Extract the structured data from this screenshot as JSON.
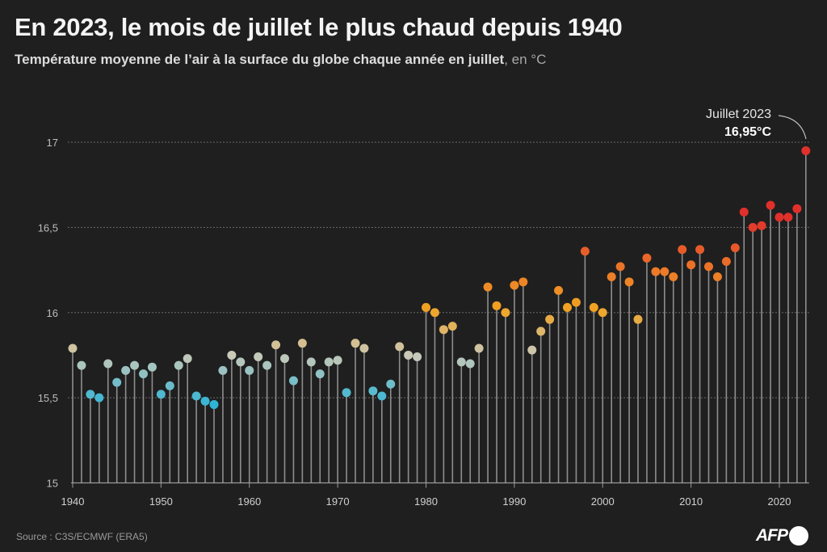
{
  "header": {
    "title": "En 2023, le mois de juillet le plus chaud depuis 1940",
    "subtitle": "Température moyenne de l’air à la surface du globe chaque année en juillet",
    "subtitle_unit": ", en °C"
  },
  "footer": {
    "source": "Source : C3S/ECMWF (ERA5)",
    "logo": "AFP"
  },
  "chart_data": {
    "type": "scatter",
    "subtype": "lollipop",
    "title": "En 2023, le mois de juillet le plus chaud depuis 1940",
    "xlabel": "",
    "ylabel": "°C",
    "xlim": [
      1940,
      2023
    ],
    "ylim": [
      15,
      17
    ],
    "yticks": [
      "15",
      "15,5",
      "16",
      "16,5",
      "17"
    ],
    "ytick_values": [
      15,
      15.5,
      16,
      16.5,
      17
    ],
    "xticks": [
      "1940",
      "1950",
      "1960",
      "1970",
      "1980",
      "1990",
      "2000",
      "2010",
      "2020"
    ],
    "xtick_values": [
      1940,
      1950,
      1960,
      1970,
      1980,
      1990,
      2000,
      2010,
      2020
    ],
    "grid": true,
    "annotation": {
      "label": "Juillet 2023",
      "value": "16,95°C",
      "year": 2023
    },
    "colors": {
      "cold": "#2bb3d6",
      "neutral": "#c9c9b8",
      "warm": "#f0a323",
      "hot": "#e0302c"
    },
    "x": [
      1940,
      1941,
      1942,
      1943,
      1944,
      1945,
      1946,
      1947,
      1948,
      1949,
      1950,
      1951,
      1952,
      1953,
      1954,
      1955,
      1956,
      1957,
      1958,
      1959,
      1960,
      1961,
      1962,
      1963,
      1964,
      1965,
      1966,
      1967,
      1968,
      1969,
      1970,
      1971,
      1972,
      1973,
      1974,
      1975,
      1976,
      1977,
      1978,
      1979,
      1980,
      1981,
      1982,
      1983,
      1984,
      1985,
      1986,
      1987,
      1988,
      1989,
      1990,
      1991,
      1992,
      1993,
      1994,
      1995,
      1996,
      1997,
      1998,
      1999,
      2000,
      2001,
      2002,
      2003,
      2004,
      2005,
      2006,
      2007,
      2008,
      2009,
      2010,
      2011,
      2012,
      2013,
      2014,
      2015,
      2016,
      2017,
      2018,
      2019,
      2020,
      2021,
      2022,
      2023
    ],
    "values": [
      15.79,
      15.69,
      15.52,
      15.5,
      15.7,
      15.59,
      15.66,
      15.69,
      15.64,
      15.68,
      15.52,
      15.57,
      15.69,
      15.73,
      15.51,
      15.48,
      15.46,
      15.66,
      15.75,
      15.71,
      15.66,
      15.74,
      15.69,
      15.81,
      15.73,
      15.6,
      15.82,
      15.71,
      15.64,
      15.71,
      15.72,
      15.53,
      15.82,
      15.79,
      15.54,
      15.51,
      15.58,
      15.8,
      15.75,
      15.74,
      16.03,
      16.0,
      15.9,
      15.92,
      15.71,
      15.7,
      15.79,
      16.15,
      16.04,
      16.0,
      16.16,
      16.18,
      15.78,
      15.89,
      15.96,
      16.13,
      16.03,
      16.06,
      16.36,
      16.03,
      16.0,
      16.21,
      16.27,
      16.18,
      15.96,
      16.32,
      16.24,
      16.24,
      16.21,
      16.37,
      16.28,
      16.37,
      16.27,
      16.21,
      16.3,
      16.38,
      16.59,
      16.5,
      16.51,
      16.63,
      16.56,
      16.56,
      16.61,
      16.95
    ]
  }
}
